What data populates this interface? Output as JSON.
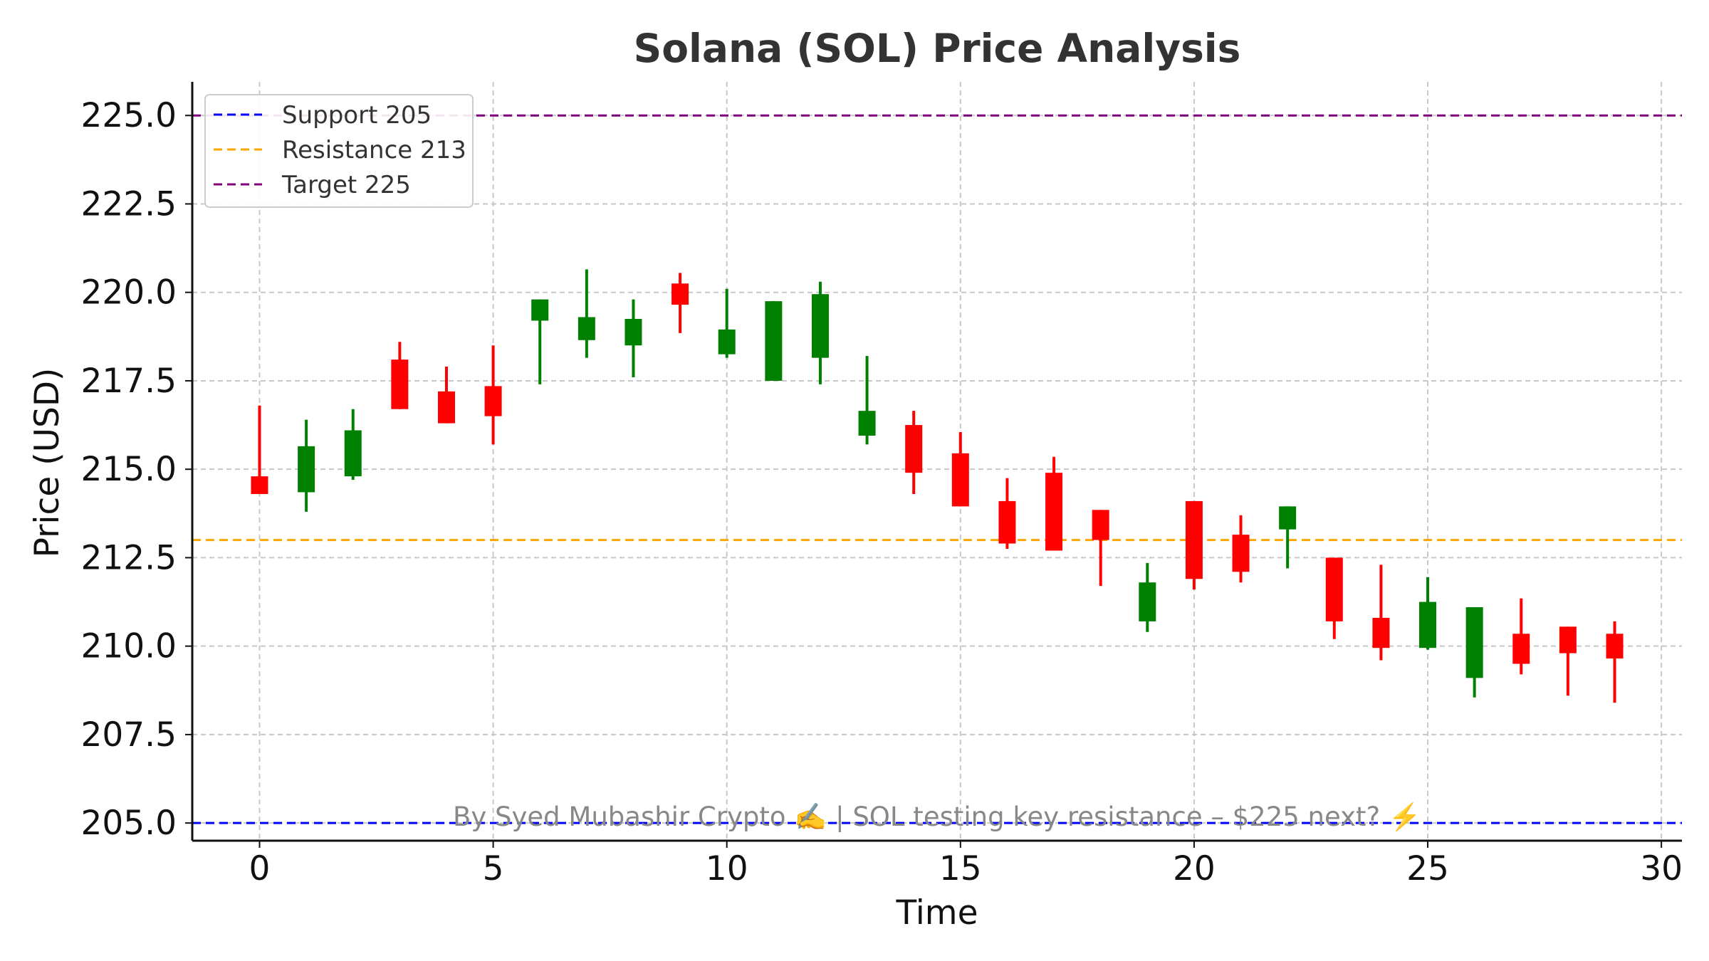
{
  "chart_data": {
    "type": "candlestick",
    "title": "Solana (SOL) Price Analysis",
    "xlabel": "Time",
    "ylabel": "Price (USD)",
    "xlim": [
      -1.44,
      30.44
    ],
    "ylim": [
      204.5,
      225.95
    ],
    "x_ticks": [
      0,
      5,
      10,
      15,
      20,
      25,
      30
    ],
    "x_tick_labels": [
      "0",
      "5",
      "10",
      "15",
      "20",
      "25",
      "30"
    ],
    "y_ticks": [
      205.0,
      207.5,
      210.0,
      212.5,
      215.0,
      217.5,
      220.0,
      222.5,
      225.0
    ],
    "y_tick_labels": [
      "205.0",
      "207.5",
      "210.0",
      "212.5",
      "215.0",
      "217.5",
      "220.0",
      "222.5",
      "225.0"
    ],
    "grid": true,
    "colors": {
      "up": "#008000",
      "down": "#ff0000",
      "support": "#0000ff",
      "resistance": "#ffa500",
      "target": "#800080",
      "grid": "#c8c8c8",
      "axis": "#111111",
      "watermark": "#888888"
    },
    "legend": {
      "placement": "top-left",
      "entries": [
        {
          "label": "Support 205",
          "color": "#0000ff"
        },
        {
          "label": "Resistance 213",
          "color": "#ffa500"
        },
        {
          "label": "Target 225",
          "color": "#800080"
        }
      ]
    },
    "hlines": [
      {
        "name": "Support 205",
        "value": 205,
        "color": "#0000ff",
        "style": "dashed"
      },
      {
        "name": "Resistance 213",
        "value": 213,
        "color": "#ffa500",
        "style": "dashed"
      },
      {
        "name": "Target 225",
        "value": 225,
        "color": "#800080",
        "style": "dashed"
      }
    ],
    "candles": [
      {
        "x": 0,
        "open": 214.8,
        "close": 214.3,
        "high": 216.8,
        "low": 214.3
      },
      {
        "x": 1,
        "open": 214.35,
        "close": 215.65,
        "high": 216.4,
        "low": 213.8
      },
      {
        "x": 2,
        "open": 214.8,
        "close": 216.1,
        "high": 216.7,
        "low": 214.7
      },
      {
        "x": 3,
        "open": 218.1,
        "close": 216.7,
        "high": 218.6,
        "low": 216.7
      },
      {
        "x": 4,
        "open": 217.2,
        "close": 216.3,
        "high": 217.9,
        "low": 216.3
      },
      {
        "x": 5,
        "open": 217.35,
        "close": 216.5,
        "high": 218.5,
        "low": 215.7
      },
      {
        "x": 6,
        "open": 219.2,
        "close": 219.8,
        "high": 219.8,
        "low": 217.4
      },
      {
        "x": 7,
        "open": 218.65,
        "close": 219.3,
        "high": 220.65,
        "low": 218.15
      },
      {
        "x": 8,
        "open": 218.5,
        "close": 219.25,
        "high": 219.8,
        "low": 217.6
      },
      {
        "x": 9,
        "open": 220.25,
        "close": 219.65,
        "high": 220.55,
        "low": 218.85
      },
      {
        "x": 10,
        "open": 218.25,
        "close": 218.95,
        "high": 220.1,
        "low": 218.15
      },
      {
        "x": 11,
        "open": 217.5,
        "close": 219.75,
        "high": 219.75,
        "low": 217.5
      },
      {
        "x": 12,
        "open": 218.15,
        "close": 219.95,
        "high": 220.3,
        "low": 217.4
      },
      {
        "x": 13,
        "open": 215.95,
        "close": 216.65,
        "high": 218.2,
        "low": 215.7
      },
      {
        "x": 14,
        "open": 216.25,
        "close": 214.9,
        "high": 216.65,
        "low": 214.3
      },
      {
        "x": 15,
        "open": 215.45,
        "close": 213.95,
        "high": 216.05,
        "low": 213.95
      },
      {
        "x": 16,
        "open": 214.1,
        "close": 212.9,
        "high": 214.75,
        "low": 212.75
      },
      {
        "x": 17,
        "open": 214.9,
        "close": 212.7,
        "high": 215.35,
        "low": 212.7
      },
      {
        "x": 18,
        "open": 213.85,
        "close": 213.0,
        "high": 213.85,
        "low": 211.7
      },
      {
        "x": 19,
        "open": 210.7,
        "close": 211.8,
        "high": 212.35,
        "low": 210.4
      },
      {
        "x": 20,
        "open": 214.1,
        "close": 211.9,
        "high": 214.1,
        "low": 211.6
      },
      {
        "x": 21,
        "open": 213.15,
        "close": 212.1,
        "high": 213.7,
        "low": 211.8
      },
      {
        "x": 22,
        "open": 213.3,
        "close": 213.95,
        "high": 213.95,
        "low": 212.2
      },
      {
        "x": 23,
        "open": 212.5,
        "close": 210.7,
        "high": 212.5,
        "low": 210.2
      },
      {
        "x": 24,
        "open": 210.8,
        "close": 209.95,
        "high": 212.3,
        "low": 209.6
      },
      {
        "x": 25,
        "open": 209.95,
        "close": 211.25,
        "high": 211.95,
        "low": 209.9
      },
      {
        "x": 26,
        "open": 209.1,
        "close": 211.1,
        "high": 211.1,
        "low": 208.55
      },
      {
        "x": 27,
        "open": 210.35,
        "close": 209.5,
        "high": 211.35,
        "low": 209.2
      },
      {
        "x": 28,
        "open": 210.55,
        "close": 209.8,
        "high": 210.55,
        "low": 208.6
      },
      {
        "x": 29,
        "open": 210.35,
        "close": 209.65,
        "high": 210.7,
        "low": 208.4
      }
    ],
    "annotation": "By Syed Mubashir Crypto ✍️ | SOL testing key resistance – $225 next? ⚡️"
  }
}
